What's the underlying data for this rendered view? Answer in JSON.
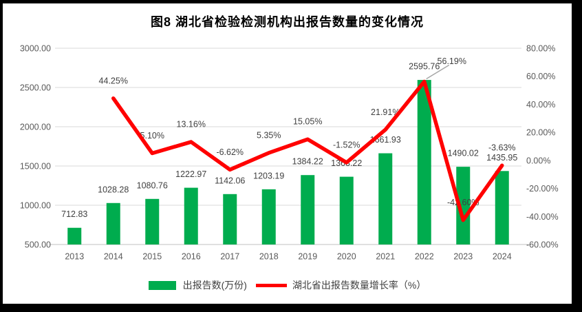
{
  "title": "图8  湖北省检验检测机构出报告数量的变化情况",
  "colors": {
    "bar": "#00AC4E",
    "line": "#FF0000",
    "gridline": "#D9D9D9",
    "axis_line": "#C0C0C0",
    "leader_line": "#A6A6A6",
    "tick_text": "#595959",
    "label_text": "#404040",
    "frame": "#000000",
    "background": "#FFFFFF"
  },
  "legend": {
    "items": [
      {
        "label": "出报告数(万份)",
        "type": "bar",
        "color": "#00AC4E"
      },
      {
        "label": "湖北省出报告数量增长率（%）",
        "type": "line",
        "color": "#FF0000"
      }
    ]
  },
  "chart_data": {
    "type": "bar+line combo",
    "title": "图8  湖北省检验检测机构出报告数量的变化情况",
    "categories": [
      "2013",
      "2014",
      "2015",
      "2016",
      "2017",
      "2018",
      "2019",
      "2020",
      "2021",
      "2022",
      "2023",
      "2024"
    ],
    "series": [
      {
        "name": "出报告数(万份)",
        "type": "bar",
        "axis": "left",
        "color": "#00AC4E",
        "values": [
          712.83,
          1028.28,
          1080.76,
          1222.97,
          1142.06,
          1203.19,
          1384.22,
          1363.22,
          1661.93,
          2595.76,
          1490.02,
          1435.95
        ],
        "data_labels": [
          "712.83",
          "1028.28",
          "1080.76",
          "1222.97",
          "1142.06",
          "1203.19",
          "1384.22",
          "1363.22",
          "1661.93",
          "2595.76",
          "1490.02",
          "1435.95"
        ]
      },
      {
        "name": "湖北省出报告数量增长率（%）",
        "type": "line",
        "axis": "right",
        "color": "#FF0000",
        "values": [
          null,
          44.25,
          5.1,
          13.16,
          -6.62,
          5.35,
          15.05,
          -1.52,
          21.91,
          56.19,
          -42.6,
          -3.63
        ],
        "data_labels": [
          null,
          "44.25%",
          "5.10%",
          "13.16%",
          "-6.62%",
          "5.35%",
          "15.05%",
          "-1.52%",
          "21.91%",
          "56.19%",
          "-42.60%",
          "-3.63%"
        ],
        "callout_index": 9
      }
    ],
    "left_axis": {
      "min": 500,
      "max": 3000,
      "step": 500,
      "tick_values": [
        3000,
        2500,
        2000,
        1500,
        1000,
        500
      ],
      "tick_labels": [
        "3000.00",
        "2500.00",
        "2000.00",
        "1500.00",
        "1000.00",
        "500.00"
      ]
    },
    "right_axis": {
      "min": -60,
      "max": 80,
      "step": 20,
      "tick_values": [
        80,
        60,
        40,
        20,
        0,
        -20,
        -40,
        -60
      ],
      "tick_labels": [
        "80.00%",
        "60.00%",
        "40.00%",
        "20.00%",
        "0.00%",
        "-20.00%",
        "-40.00%",
        "-60.00%"
      ]
    },
    "grid": true,
    "legend_position": "bottom"
  }
}
